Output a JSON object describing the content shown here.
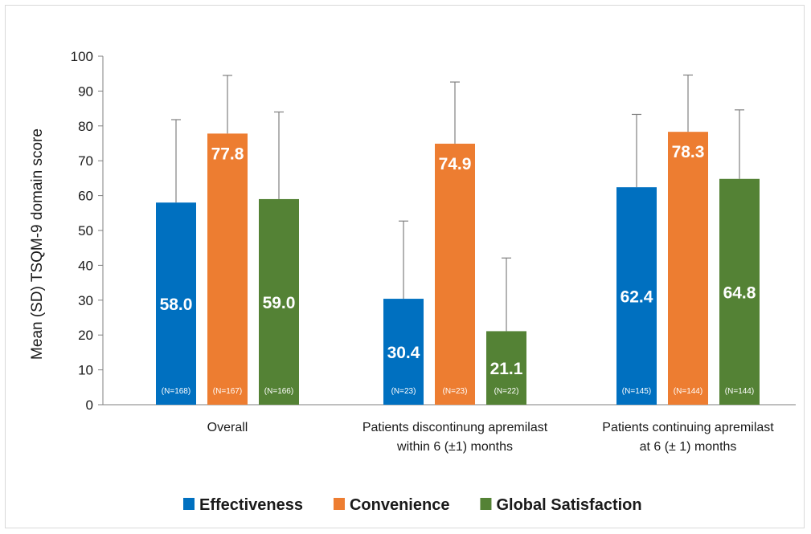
{
  "chart_data": {
    "type": "bar",
    "ylabel": "Mean (SD) TSQM-9 domain score",
    "xlabel": "",
    "ylim": [
      0,
      100
    ],
    "yticks": [
      0,
      10,
      20,
      30,
      40,
      50,
      60,
      70,
      80,
      90,
      100
    ],
    "grid": false,
    "legend_position": "bottom",
    "categories": [
      [
        "Overall"
      ],
      [
        "Patients discontinung apremilast",
        "within 6 (±1) months"
      ],
      [
        "Patients continuing apremilast",
        "at 6 (± 1) months"
      ]
    ],
    "series": [
      {
        "name": "Effectiveness",
        "color": "#0070c0",
        "values": [
          58.0,
          30.4,
          62.4
        ],
        "labels": [
          "58.0",
          "30.4",
          "62.4"
        ],
        "sd_upper": [
          81.8,
          52.7,
          83.3
        ],
        "n_labels": [
          "(N=168)",
          "(N=23)",
          "(N=145)"
        ]
      },
      {
        "name": "Convenience",
        "color": "#ed7d31",
        "values": [
          77.8,
          74.9,
          78.3
        ],
        "labels": [
          "77.8",
          "74.9",
          "78.3"
        ],
        "sd_upper": [
          94.5,
          92.6,
          94.6
        ],
        "n_labels": [
          "(N=167)",
          "(N=23)",
          "(N=144)"
        ]
      },
      {
        "name": "Global Satisfaction",
        "color": "#548235",
        "values": [
          59.0,
          21.1,
          64.8
        ],
        "labels": [
          "59.0",
          "21.1",
          "64.8"
        ],
        "sd_upper": [
          84.0,
          42.1,
          84.6
        ],
        "n_labels": [
          "(N=166)",
          "(N=22)",
          "(N=144)"
        ]
      }
    ]
  }
}
